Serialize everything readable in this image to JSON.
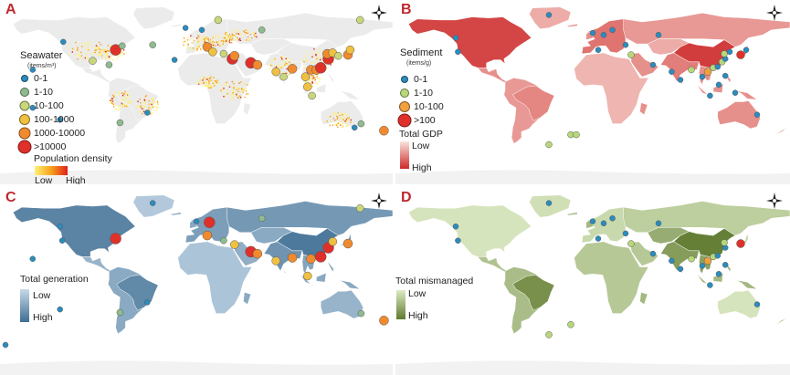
{
  "colors": {
    "land_blank": "#ebebeb",
    "antarctica": "#f2f2f2",
    "marker_stroke": "#555555"
  },
  "panels": [
    {
      "id": "A",
      "label": "A",
      "legend_title": "Seawater",
      "legend_unit": "(items/m³)",
      "categories": [
        {
          "label": "0-1",
          "color": "#2b8cbe",
          "size": 3
        },
        {
          "label": "1-10",
          "color": "#8fbc8f",
          "size": 4
        },
        {
          "label": "10-100",
          "color": "#c9d77b",
          "size": 4.5
        },
        {
          "label": "100-1000",
          "color": "#f0c040",
          "size": 5
        },
        {
          "label": "1000-10000",
          "color": "#f08a2e",
          "size": 5.5
        },
        {
          "label": ">10000",
          "color": "#e0302a",
          "size": 6.5
        }
      ],
      "ramp_title": "Population density",
      "ramp_low": "Low",
      "ramp_high": "High",
      "ramp_colors": [
        "#fff176",
        "#f7a21b",
        "#e0201b"
      ],
      "choropleth": null
    },
    {
      "id": "B",
      "label": "B",
      "legend_title": "Sediment",
      "legend_unit": "(items/g)",
      "categories": [
        {
          "label": "0-1",
          "color": "#2b8cbe",
          "size": 3
        },
        {
          "label": "1-10",
          "color": "#b7d77a",
          "size": 4
        },
        {
          "label": "10-100",
          "color": "#f0a040",
          "size": 5
        },
        {
          "label": ">100",
          "color": "#e0302a",
          "size": 6.5
        }
      ],
      "ramp_title": "Total GDP",
      "ramp_low": "Low",
      "ramp_high": "High",
      "ramp_colors": [
        "#fbe3dc",
        "#cc2a2a"
      ],
      "choropleth": "gdp"
    },
    {
      "id": "C",
      "label": "C",
      "legend_title": "",
      "legend_unit": "",
      "categories": [],
      "ramp_title": "Total generation",
      "ramp_low": "Low",
      "ramp_high": "High",
      "ramp_colors": [
        "#c7d9e8",
        "#3f6e93"
      ],
      "choropleth": "generation"
    },
    {
      "id": "D",
      "label": "D",
      "legend_title": "",
      "legend_unit": "",
      "categories": [],
      "ramp_title": "Total mismanaged",
      "ramp_low": "Low",
      "ramp_high": "High",
      "ramp_colors": [
        "#dceac4",
        "#5f7a2e"
      ],
      "choropleth": "mismanaged"
    }
  ],
  "regions": {
    "north_america": {
      "gdp": 0.85,
      "generation": 0.8,
      "mismanaged": 0.05
    },
    "greenland": {
      "gdp": 0.3,
      "generation": 0.15,
      "mismanaged": 0.1
    },
    "central_america": {
      "gdp": 0.45,
      "generation": 0.35,
      "mismanaged": 0.35
    },
    "south_america": {
      "gdp": 0.4,
      "generation": 0.45,
      "mismanaged": 0.4
    },
    "brazil": {
      "gdp": 0.5,
      "generation": 0.75,
      "mismanaged": 0.8
    },
    "europe": {
      "gdp": 0.6,
      "generation": 0.55,
      "mismanaged": 0.15
    },
    "africa": {
      "gdp": 0.25,
      "generation": 0.2,
      "mismanaged": 0.3
    },
    "middle_east": {
      "gdp": 0.45,
      "generation": 0.4,
      "mismanaged": 0.3
    },
    "russia": {
      "gdp": 0.4,
      "generation": 0.6,
      "mismanaged": 0.25
    },
    "central_asia": {
      "gdp": 0.3,
      "generation": 0.45,
      "mismanaged": 0.55
    },
    "india": {
      "gdp": 0.55,
      "generation": 0.65,
      "mismanaged": 0.7
    },
    "china": {
      "gdp": 0.9,
      "generation": 0.9,
      "mismanaged": 0.95
    },
    "se_asia": {
      "gdp": 0.45,
      "generation": 0.5,
      "mismanaged": 0.65
    },
    "japan": {
      "gdp": 0.6,
      "generation": 0.55,
      "mismanaged": 0.2
    },
    "australia": {
      "gdp": 0.45,
      "generation": 0.35,
      "mismanaged": 0.05
    }
  },
  "sites": {
    "A": [
      {
        "lon": -74,
        "lat": 40,
        "cat": 5
      },
      {
        "lon": -122,
        "lat": 48,
        "cat": 0
      },
      {
        "lon": -80,
        "lat": 25,
        "cat": 1
      },
      {
        "lon": -68,
        "lat": 44,
        "cat": 1
      },
      {
        "lon": -95,
        "lat": 29,
        "cat": 2
      },
      {
        "lon": -10,
        "lat": 62,
        "cat": 0
      },
      {
        "lon": 5,
        "lat": 60,
        "cat": 0
      },
      {
        "lon": 20,
        "lat": 70,
        "cat": 2
      },
      {
        "lon": 10,
        "lat": 43,
        "cat": 4
      },
      {
        "lon": 15,
        "lat": 38,
        "cat": 3
      },
      {
        "lon": 25,
        "lat": 36,
        "cat": 2
      },
      {
        "lon": 33,
        "lat": 31,
        "cat": 5
      },
      {
        "lon": 35,
        "lat": 34,
        "cat": 4
      },
      {
        "lon": 50,
        "lat": 27,
        "cat": 5
      },
      {
        "lon": 56,
        "lat": 25,
        "cat": 4
      },
      {
        "lon": 73,
        "lat": 18,
        "cat": 3
      },
      {
        "lon": 80,
        "lat": 13,
        "cat": 2
      },
      {
        "lon": 88,
        "lat": 21,
        "cat": 4
      },
      {
        "lon": 100,
        "lat": 13,
        "cat": 3
      },
      {
        "lon": 105,
        "lat": 20,
        "cat": 4
      },
      {
        "lon": 110,
        "lat": 20,
        "cat": 4
      },
      {
        "lon": 114,
        "lat": 22,
        "cat": 5
      },
      {
        "lon": 121,
        "lat": 31,
        "cat": 5
      },
      {
        "lon": 120,
        "lat": 36,
        "cat": 4
      },
      {
        "lon": 125,
        "lat": 37,
        "cat": 3
      },
      {
        "lon": 130,
        "lat": 34,
        "cat": 2
      },
      {
        "lon": 139,
        "lat": 35,
        "cat": 4
      },
      {
        "lon": 141,
        "lat": 40,
        "cat": 3
      },
      {
        "lon": 102,
        "lat": 3,
        "cat": 3
      },
      {
        "lon": 106,
        "lat": -6,
        "cat": 2
      },
      {
        "lon": 145,
        "lat": -38,
        "cat": 0
      },
      {
        "lon": 151,
        "lat": -34,
        "cat": 1
      },
      {
        "lon": 172,
        "lat": -41,
        "cat": 4
      },
      {
        "lon": -150,
        "lat": 20,
        "cat": 0
      },
      {
        "lon": -150,
        "lat": -18,
        "cat": 0
      },
      {
        "lon": -125,
        "lat": -30,
        "cat": 0
      },
      {
        "lon": -70,
        "lat": -33,
        "cat": 1
      },
      {
        "lon": -45,
        "lat": -23,
        "cat": 0
      },
      {
        "lon": -20,
        "lat": 30,
        "cat": 0
      },
      {
        "lon": -40,
        "lat": 45,
        "cat": 1
      },
      {
        "lon": 150,
        "lat": 70,
        "cat": 2
      },
      {
        "lon": 60,
        "lat": 60,
        "cat": 1
      }
    ],
    "B": [
      {
        "lon": -125,
        "lat": 52,
        "cat": 0
      },
      {
        "lon": -123,
        "lat": 38,
        "cat": 0
      },
      {
        "lon": -40,
        "lat": 75,
        "cat": 0
      },
      {
        "lon": 0,
        "lat": 57,
        "cat": 0
      },
      {
        "lon": 10,
        "lat": 55,
        "cat": 0
      },
      {
        "lon": 18,
        "lat": 60,
        "cat": 0
      },
      {
        "lon": 30,
        "lat": 45,
        "cat": 0
      },
      {
        "lon": 35,
        "lat": 35,
        "cat": 1
      },
      {
        "lon": 5,
        "lat": 40,
        "cat": 0
      },
      {
        "lon": 55,
        "lat": 25,
        "cat": 0
      },
      {
        "lon": 72,
        "lat": 18,
        "cat": 0
      },
      {
        "lon": 80,
        "lat": 10,
        "cat": 0
      },
      {
        "lon": 90,
        "lat": 20,
        "cat": 1
      },
      {
        "lon": 100,
        "lat": 13,
        "cat": 0
      },
      {
        "lon": 105,
        "lat": 18,
        "cat": 2
      },
      {
        "lon": 110,
        "lat": 22,
        "cat": 1
      },
      {
        "lon": 114,
        "lat": 23,
        "cat": 0
      },
      {
        "lon": 118,
        "lat": 28,
        "cat": 1
      },
      {
        "lon": 121,
        "lat": 31,
        "cat": 0
      },
      {
        "lon": 120,
        "lat": 36,
        "cat": 1
      },
      {
        "lon": 125,
        "lat": 38,
        "cat": 0
      },
      {
        "lon": 135,
        "lat": 35,
        "cat": 3
      },
      {
        "lon": 140,
        "lat": 40,
        "cat": 0
      },
      {
        "lon": 121,
        "lat": 14,
        "cat": 0
      },
      {
        "lon": 115,
        "lat": 5,
        "cat": 0
      },
      {
        "lon": 107,
        "lat": -6,
        "cat": 0
      },
      {
        "lon": 130,
        "lat": -3,
        "cat": 0
      },
      {
        "lon": 150,
        "lat": -25,
        "cat": 0
      },
      {
        "lon": -40,
        "lat": -55,
        "cat": 1
      },
      {
        "lon": -20,
        "lat": -45,
        "cat": 1
      },
      {
        "lon": -15,
        "lat": -45,
        "cat": 1
      },
      {
        "lon": 60,
        "lat": 55,
        "cat": 0
      }
    ],
    "C": [
      {
        "lon": -125,
        "lat": 52,
        "cat": 0
      },
      {
        "lon": -123,
        "lat": 38,
        "cat": 0
      },
      {
        "lon": -74,
        "lat": 40,
        "cat": 5
      },
      {
        "lon": -40,
        "lat": 75,
        "cat": 0
      },
      {
        "lon": 0,
        "lat": 57,
        "cat": 0
      },
      {
        "lon": 12,
        "lat": 56,
        "cat": 5
      },
      {
        "lon": 10,
        "lat": 43,
        "cat": 4
      },
      {
        "lon": 25,
        "lat": 38,
        "cat": 1
      },
      {
        "lon": 35,
        "lat": 34,
        "cat": 3
      },
      {
        "lon": 50,
        "lat": 27,
        "cat": 5
      },
      {
        "lon": 56,
        "lat": 25,
        "cat": 4
      },
      {
        "lon": 73,
        "lat": 18,
        "cat": 3
      },
      {
        "lon": 88,
        "lat": 21,
        "cat": 4
      },
      {
        "lon": 105,
        "lat": 20,
        "cat": 4
      },
      {
        "lon": 114,
        "lat": 22,
        "cat": 5
      },
      {
        "lon": 121,
        "lat": 31,
        "cat": 5
      },
      {
        "lon": 125,
        "lat": 37,
        "cat": 3
      },
      {
        "lon": 139,
        "lat": 35,
        "cat": 4
      },
      {
        "lon": 102,
        "lat": 3,
        "cat": 3
      },
      {
        "lon": 151,
        "lat": -34,
        "cat": 1
      },
      {
        "lon": 172,
        "lat": -41,
        "cat": 4
      },
      {
        "lon": -150,
        "lat": 20,
        "cat": 0
      },
      {
        "lon": -125,
        "lat": -30,
        "cat": 0
      },
      {
        "lon": -70,
        "lat": -33,
        "cat": 1
      },
      {
        "lon": -45,
        "lat": -23,
        "cat": 0
      },
      {
        "lon": -175,
        "lat": -65,
        "cat": 0
      },
      {
        "lon": 150,
        "lat": 70,
        "cat": 2
      },
      {
        "lon": 60,
        "lat": 60,
        "cat": 1
      }
    ],
    "D": [
      {
        "lon": -125,
        "lat": 52,
        "cat": 0
      },
      {
        "lon": -123,
        "lat": 38,
        "cat": 0
      },
      {
        "lon": -40,
        "lat": 75,
        "cat": 0
      },
      {
        "lon": 0,
        "lat": 57,
        "cat": 0
      },
      {
        "lon": 10,
        "lat": 55,
        "cat": 0
      },
      {
        "lon": 18,
        "lat": 60,
        "cat": 0
      },
      {
        "lon": 30,
        "lat": 45,
        "cat": 0
      },
      {
        "lon": 35,
        "lat": 35,
        "cat": 1
      },
      {
        "lon": 5,
        "lat": 40,
        "cat": 0
      },
      {
        "lon": 55,
        "lat": 25,
        "cat": 0
      },
      {
        "lon": 72,
        "lat": 18,
        "cat": 0
      },
      {
        "lon": 80,
        "lat": 10,
        "cat": 0
      },
      {
        "lon": 90,
        "lat": 20,
        "cat": 1
      },
      {
        "lon": 100,
        "lat": 13,
        "cat": 0
      },
      {
        "lon": 105,
        "lat": 18,
        "cat": 2
      },
      {
        "lon": 110,
        "lat": 22,
        "cat": 1
      },
      {
        "lon": 114,
        "lat": 23,
        "cat": 0
      },
      {
        "lon": 121,
        "lat": 31,
        "cat": 0
      },
      {
        "lon": 120,
        "lat": 36,
        "cat": 1
      },
      {
        "lon": 135,
        "lat": 35,
        "cat": 3
      },
      {
        "lon": 121,
        "lat": 14,
        "cat": 0
      },
      {
        "lon": 115,
        "lat": 5,
        "cat": 0
      },
      {
        "lon": 107,
        "lat": -6,
        "cat": 0
      },
      {
        "lon": 150,
        "lat": -25,
        "cat": 0
      },
      {
        "lon": -40,
        "lat": -55,
        "cat": 1
      },
      {
        "lon": -20,
        "lat": -45,
        "cat": 1
      },
      {
        "lon": 60,
        "lat": 55,
        "cat": 0
      }
    ]
  },
  "site_palettes": {
    "A": [
      "#2b8cbe",
      "#8fbc8f",
      "#c9d77b",
      "#f0c040",
      "#f08a2e",
      "#e0302a"
    ],
    "B": [
      "#2b8cbe",
      "#b7d77a",
      "#f0a040",
      "#e0302a"
    ],
    "C": [
      "#2b8cbe",
      "#8fbc8f",
      "#c9d77b",
      "#f0c040",
      "#f08a2e",
      "#e0302a"
    ],
    "D": [
      "#2b8cbe",
      "#b7d77a",
      "#f0a040",
      "#e0302a"
    ]
  }
}
